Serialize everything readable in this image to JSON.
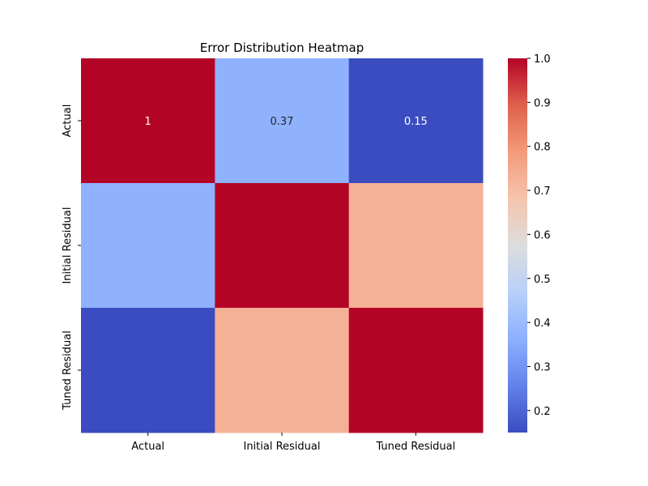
{
  "chart_data": {
    "type": "heatmap",
    "title": "Error Distribution Heatmap",
    "x_labels": [
      "Actual",
      "Initial Residual",
      "Tuned Residual"
    ],
    "y_labels": [
      "Actual",
      "Initial Residual",
      "Tuned Residual"
    ],
    "matrix": [
      [
        1.0,
        0.37,
        0.15
      ],
      [
        0.37,
        1.0,
        0.73
      ],
      [
        0.15,
        0.73,
        1.0
      ]
    ],
    "annotations": [
      [
        "1",
        "0.37",
        "0.15"
      ],
      [
        "",
        "",
        ""
      ],
      [
        "",
        "",
        ""
      ]
    ],
    "colorbar": {
      "colormap": "coolwarm",
      "range": [
        0.15,
        1.0
      ],
      "ticks": [
        "0.2",
        "0.3",
        "0.4",
        "0.5",
        "0.6",
        "0.7",
        "0.8",
        "0.9",
        "1.0"
      ]
    }
  }
}
